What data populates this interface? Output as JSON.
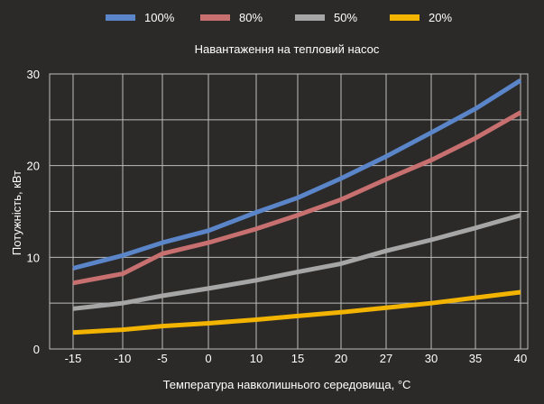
{
  "chart_data": {
    "type": "line",
    "subtitle": "Навантаження на тепловий насос",
    "xlabel": "Температура навколишнього середовища, °C",
    "ylabel": "Потужність, кВт",
    "categories": [
      "-15",
      "-10",
      "-5",
      "0",
      "10",
      "15",
      "20",
      "27",
      "30",
      "35",
      "40"
    ],
    "ylim": [
      0,
      30
    ],
    "yticks": [
      "0",
      "10",
      "20",
      "30"
    ],
    "grid": true,
    "legend_position": "top",
    "series": [
      {
        "name": "100%",
        "color": "#5b85c9",
        "values": [
          8.8,
          10.2,
          11.6,
          12.9,
          14.9,
          16.5,
          18.6,
          21.0,
          23.6,
          26.2,
          29.3
        ]
      },
      {
        "name": "80%",
        "color": "#c87070",
        "values": [
          7.2,
          8.2,
          10.4,
          11.6,
          13.1,
          14.6,
          16.3,
          18.5,
          20.6,
          23.0,
          25.8
        ]
      },
      {
        "name": "50%",
        "color": "#a6a6a6",
        "values": [
          4.4,
          5.0,
          5.8,
          6.6,
          7.5,
          8.4,
          9.3,
          10.7,
          11.9,
          13.2,
          14.6
        ]
      },
      {
        "name": "20%",
        "color": "#f2b400",
        "values": [
          1.8,
          2.1,
          2.5,
          2.8,
          3.2,
          3.6,
          4.0,
          4.5,
          5.0,
          5.6,
          6.2
        ]
      }
    ]
  }
}
